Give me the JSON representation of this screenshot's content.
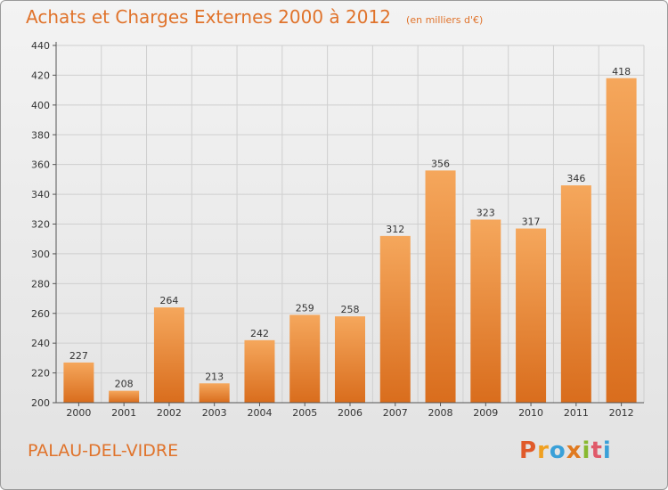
{
  "title": "Achats et Charges Externes 2000 à 2012",
  "subtitle": "(en milliers d'€)",
  "place": "PALAU-DEL-VIDRE",
  "logo": {
    "p": "P",
    "r": "r",
    "o": "o",
    "x": "x",
    "i1": "i",
    "t": "t",
    "i2": "i"
  },
  "colors": {
    "bar_light": "#f5a75c",
    "bar_dark": "#d96d1d",
    "accent": "#e0732b"
  },
  "chart_data": {
    "type": "bar",
    "categories": [
      "2000",
      "2001",
      "2002",
      "2003",
      "2004",
      "2005",
      "2006",
      "2007",
      "2008",
      "2009",
      "2010",
      "2011",
      "2012"
    ],
    "values": [
      227,
      208,
      264,
      213,
      242,
      259,
      258,
      312,
      356,
      323,
      317,
      346,
      418
    ],
    "ylim": [
      200,
      440
    ],
    "yticks": [
      200,
      220,
      240,
      260,
      280,
      300,
      320,
      340,
      360,
      380,
      400,
      420,
      440
    ],
    "grid": true,
    "title": "Achats et Charges Externes 2000 à 2012",
    "xlabel": "",
    "ylabel": ""
  }
}
